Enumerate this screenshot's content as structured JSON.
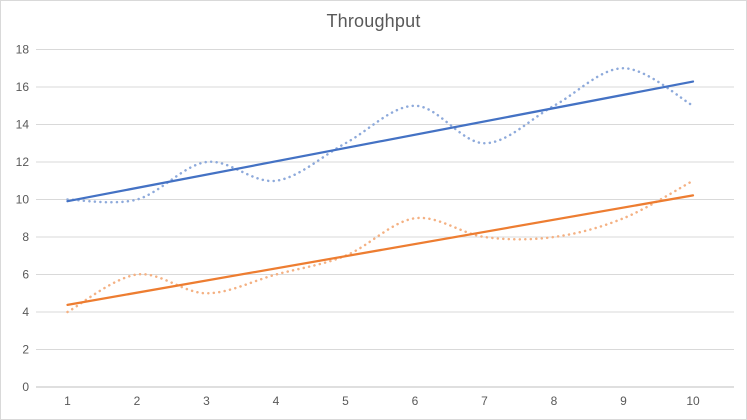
{
  "chart_data": {
    "type": "line",
    "title": "Throughput",
    "categories": [
      1,
      2,
      3,
      4,
      5,
      6,
      7,
      8,
      9,
      10
    ],
    "series": [
      {
        "id": "series-1",
        "values": [
          10,
          10,
          12,
          11,
          13,
          15,
          13,
          15,
          17,
          15
        ],
        "color": "#8EAADB",
        "line_style": "dotted",
        "smooth": true
      },
      {
        "id": "series-2",
        "values": [
          4,
          6,
          5,
          6,
          7,
          9,
          8,
          8,
          9,
          11
        ],
        "color": "#F4B183",
        "line_style": "dotted",
        "smooth": true
      }
    ],
    "trendlines": [
      {
        "for": "series-1",
        "fit": "linear",
        "color": "#4472C4",
        "line_style": "solid"
      },
      {
        "for": "series-2",
        "fit": "linear",
        "color": "#ED7D31",
        "line_style": "solid"
      }
    ],
    "x_axis": {
      "tick_labels": [
        "1",
        "2",
        "3",
        "4",
        "5",
        "6",
        "7",
        "8",
        "9",
        "10"
      ],
      "label_color": "#595959"
    },
    "y_axis": {
      "min": 0,
      "max": 18,
      "step": 2,
      "tick_labels": [
        "0",
        "2",
        "4",
        "6",
        "8",
        "10",
        "12",
        "14",
        "16",
        "18"
      ],
      "label_color": "#595959"
    },
    "grid": {
      "visible": true,
      "color": "#D9D9D9",
      "axis_line_color": "#BFBFBF"
    },
    "legend": {
      "visible": false
    },
    "title_color": "#595959",
    "background": "#FFFFFF",
    "border_color": "#D9D9D9"
  }
}
